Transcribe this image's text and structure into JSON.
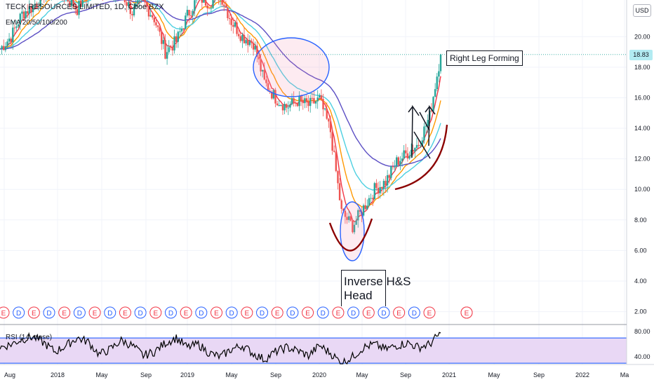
{
  "header": {
    "title": "TECK RESOURCES LIMITED, 1D, Cboe BZX",
    "indicator": "EMA 20/50/100/200",
    "currency": "USD",
    "last_price": "18.83"
  },
  "rsi": {
    "label": "RSI (14, close)",
    "ticks": [
      "80.00",
      "40.00"
    ]
  },
  "annotations": {
    "right_leg": "Right Leg Forming",
    "head_line1": "Inverse H&S",
    "head_line2": "Head"
  },
  "events": [
    "E",
    "D",
    "E",
    "D",
    "E",
    "D",
    "E",
    "D",
    "E",
    "D",
    "E",
    "D",
    "E",
    "D",
    "E",
    "D",
    "E",
    "D",
    "E",
    "D",
    "E",
    "D",
    "E",
    "D",
    "E",
    "D",
    "E",
    "D",
    "E",
    "E",
    "E"
  ],
  "colors": {
    "price_up": "#26a69a",
    "price_down": "#ef5350",
    "ema20": "#f23645",
    "ema50": "#ff9800",
    "ema100": "#4dd0e1",
    "ema200": "#5c4fc4",
    "rsi_line": "#000000",
    "rsi_band": "#e9d8f5",
    "rsi_bound": "#2962ff",
    "pattern_arc": "#8b0000",
    "circles": "#2962ff"
  },
  "chart_data": {
    "type": "line",
    "title": "TECK RESOURCES LIMITED, 1D, Cboe BZX",
    "xlabel": "",
    "ylabel": "USD",
    "ylim": [
      1.2,
      22.4
    ],
    "y_ticks": [
      "20.00",
      "18.00",
      "16.00",
      "14.00",
      "12.00",
      "10.00",
      "8.00",
      "6.00",
      "4.00",
      "2.00"
    ],
    "x_ticks": [
      "Aug",
      "2018",
      "May",
      "Sep",
      "2019",
      "May",
      "Sep",
      "2020",
      "May",
      "Sep",
      "2021",
      "May",
      "Sep",
      "2022",
      "Ma"
    ],
    "last_value": 18.83,
    "series": [
      {
        "name": "close",
        "x": [
          "2017-08",
          "2017-09",
          "2017-10",
          "2017-11",
          "2017-12",
          "2018-01",
          "2018-02",
          "2018-03",
          "2018-04",
          "2018-05",
          "2018-06",
          "2018-07",
          "2018-08",
          "2018-09",
          "2018-10",
          "2018-11",
          "2018-12",
          "2019-01",
          "2019-02",
          "2019-03",
          "2019-04",
          "2019-05",
          "2019-06",
          "2019-07",
          "2019-08",
          "2019-09",
          "2019-10",
          "2019-11",
          "2019-12",
          "2020-01",
          "2020-02",
          "2020-03",
          "2020-04",
          "2020-05",
          "2020-06",
          "2020-07",
          "2020-08",
          "2020-09",
          "2020-10",
          "2020-11",
          "2020-12"
        ],
        "values": [
          19.2,
          20.0,
          21.5,
          22.0,
          22.8,
          23.4,
          22.6,
          21.8,
          22.9,
          23.5,
          22.7,
          22.9,
          21.6,
          22.3,
          21.2,
          19.0,
          19.7,
          21.4,
          22.6,
          22.2,
          22.8,
          21.0,
          20.0,
          19.6,
          17.0,
          16.0,
          15.4,
          15.8,
          15.5,
          15.9,
          13.8,
          8.5,
          7.6,
          8.8,
          10.0,
          10.5,
          11.8,
          12.4,
          13.0,
          14.8,
          18.83
        ]
      }
    ],
    "rsi_series": {
      "name": "RSI (14, close)",
      "ylim": [
        28,
        88
      ],
      "bounds": [
        70,
        30
      ],
      "values": [
        55,
        60,
        68,
        72,
        62,
        48,
        58,
        70,
        64,
        44,
        52,
        66,
        58,
        42,
        48,
        62,
        70,
        55,
        60,
        46,
        40,
        52,
        58,
        45,
        36,
        48,
        55,
        50,
        42,
        58,
        46,
        30,
        40,
        55,
        60,
        52,
        58,
        62,
        55,
        60,
        78
      ]
    },
    "grid": true
  }
}
